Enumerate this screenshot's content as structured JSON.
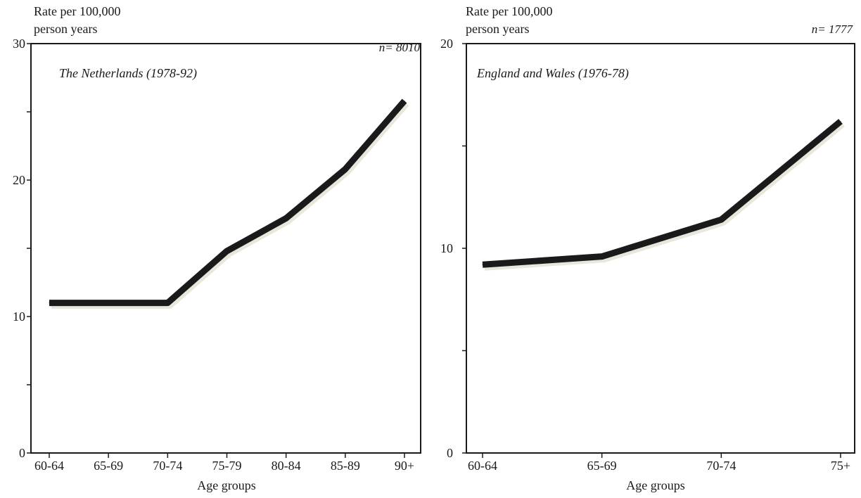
{
  "charts": [
    {
      "ylabel_line1": "Rate per 100,000",
      "ylabel_line2": "person years",
      "n_label": "n= 8010",
      "inset_title": "The Netherlands (1978-92)",
      "xlabel": "Age groups",
      "ytick_labels": [
        "0",
        "10",
        "20",
        "30"
      ],
      "line_color": "#1a1a1a",
      "shadow_color": "#e9e6dc"
    },
    {
      "ylabel_line1": "Rate per 100,000",
      "ylabel_line2": "person years",
      "n_label": "n= 1777",
      "inset_title": "England and Wales (1976-78)",
      "xlabel": "Age groups",
      "ytick_labels": [
        "0",
        "10",
        "20"
      ],
      "line_color": "#1a1a1a",
      "shadow_color": "#e9e6dc"
    }
  ],
  "chart_data": [
    {
      "type": "line",
      "title": "The Netherlands (1978-92)",
      "xlabel": "Age groups",
      "ylabel": "Rate per 100,000 person years",
      "annotation": "n= 8010",
      "categories": [
        "60-64",
        "65-69",
        "70-74",
        "75-79",
        "80-84",
        "85-89",
        "90+"
      ],
      "values": [
        11,
        11,
        11,
        14.8,
        17.2,
        20.8,
        25.8
      ],
      "ylim": [
        0,
        30
      ],
      "yticks_labeled": [
        0,
        10,
        20,
        30
      ],
      "yticks_minor": [
        5,
        15,
        25
      ],
      "grid": false,
      "legend": "none"
    },
    {
      "type": "line",
      "title": "England and Wales (1976-78)",
      "xlabel": "Age groups",
      "ylabel": "Rate per 100,000 person years",
      "annotation": "n= 1777",
      "categories": [
        "60-64",
        "65-69",
        "70-74",
        "75+"
      ],
      "values": [
        9.2,
        9.6,
        11.4,
        16.2
      ],
      "ylim": [
        0,
        20
      ],
      "yticks_labeled": [
        0,
        10,
        20
      ],
      "yticks_minor": [
        5,
        15
      ],
      "grid": false,
      "legend": "none"
    }
  ]
}
